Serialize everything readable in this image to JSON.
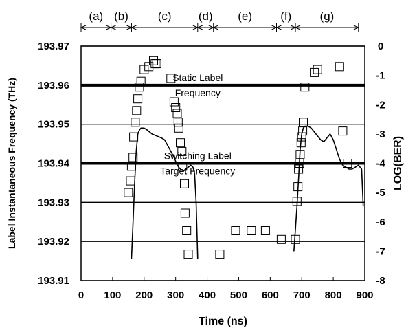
{
  "chart_data": {
    "type": "scatter",
    "xlabel": "Time (ns)",
    "ylabel": "Label Instantaneous Frequency (THz)",
    "y2label": "LOG(BER)",
    "xlim": [
      0,
      900
    ],
    "ylim": [
      193.91,
      193.97
    ],
    "y2lim": [
      -8,
      0
    ],
    "xticks": [
      "0",
      "100",
      "200",
      "300",
      "400",
      "500",
      "600",
      "700",
      "800",
      "900"
    ],
    "yticks": [
      "193.91",
      "193.92",
      "193.93",
      "193.94",
      "193.95",
      "193.96",
      "193.97"
    ],
    "y2ticks": [
      "-8",
      "-7",
      "-6",
      "-5",
      "-4",
      "-3",
      "-2",
      "-1",
      "0"
    ],
    "grid": "horizontal",
    "regions": [
      {
        "label": "(a)",
        "from": 0,
        "to": 95
      },
      {
        "label": "(b)",
        "from": 95,
        "to": 160
      },
      {
        "label": "(c)",
        "from": 160,
        "to": 370
      },
      {
        "label": "(d)",
        "from": 370,
        "to": 420
      },
      {
        "label": "(e)",
        "from": 420,
        "to": 620
      },
      {
        "label": "(f)",
        "from": 620,
        "to": 680
      },
      {
        "label": "(g)",
        "from": 680,
        "to": 880
      }
    ],
    "reference_lines": [
      {
        "name": "static-label-frequency",
        "label_lines": [
          "Static Label",
          "Frequency"
        ],
        "y": 193.96
      },
      {
        "name": "switching-label-target",
        "label_lines": [
          "Switching Label",
          "Target Frequency"
        ],
        "y": 193.94
      }
    ],
    "series": [
      {
        "marker": "open-square",
        "axis": "right",
        "x": [
          150,
          157,
          160,
          165,
          167,
          172,
          176,
          180,
          185,
          190,
          200,
          215,
          230,
          235,
          240,
          285,
          295,
          300,
          305,
          308,
          310,
          315,
          320,
          322,
          328,
          330,
          335,
          340,
          440,
          490,
          540,
          585,
          635,
          680,
          685,
          688,
          690,
          693,
          695,
          698,
          700,
          703,
          705,
          710,
          740,
          750,
          820,
          830,
          845
        ],
        "y": [
          -5,
          -4.6,
          -4.1,
          -3.8,
          -3.1,
          -2.6,
          -2.2,
          -1.8,
          -1.4,
          -1.2,
          -0.8,
          -0.7,
          -0.5,
          -0.6,
          -0.6,
          -1.1,
          -1.9,
          -2.1,
          -2.3,
          -2.6,
          -2.8,
          -3.3,
          -3.6,
          -4.1,
          -4.7,
          -5.7,
          -6.3,
          -7.1,
          -7.1,
          -6.3,
          -6.3,
          -6.3,
          -6.6,
          -6.6,
          -5.3,
          -4.8,
          -4.2,
          -4.0,
          -3.7,
          -3.3,
          -3.1,
          -2.9,
          -2.6,
          -1.4,
          -0.9,
          -0.8,
          -0.7,
          -2.9,
          -4.0
        ]
      },
      {
        "line": "solid",
        "axis": "left",
        "x": [
          160,
          165,
          170,
          175,
          180,
          185,
          190,
          200,
          210,
          225,
          240,
          255,
          265,
          275,
          285,
          295,
          305,
          315,
          325,
          332,
          340,
          348,
          355,
          360,
          365,
          370,
          675,
          680,
          685,
          690,
          695,
          700,
          705,
          710,
          720,
          730,
          740,
          750,
          760,
          770,
          780,
          790,
          800,
          810,
          820,
          830,
          840,
          850,
          860,
          870,
          880,
          890,
          895
        ],
        "y": [
          193.9155,
          193.925,
          193.935,
          193.943,
          193.9475,
          193.9485,
          193.949,
          193.949,
          193.9485,
          193.9475,
          193.947,
          193.9465,
          193.946,
          193.9445,
          193.943,
          193.9415,
          193.9395,
          193.9385,
          193.938,
          193.9385,
          193.939,
          193.9395,
          193.939,
          193.9375,
          193.93,
          193.9155,
          193.9175,
          193.923,
          193.929,
          193.936,
          193.9435,
          193.9475,
          193.949,
          193.9495,
          193.9495,
          193.949,
          193.948,
          193.947,
          193.946,
          193.9455,
          193.9465,
          193.9475,
          193.946,
          193.9435,
          193.941,
          193.9395,
          193.939,
          193.9385,
          193.9385,
          193.939,
          193.9395,
          193.9385,
          193.929
        ]
      }
    ]
  }
}
